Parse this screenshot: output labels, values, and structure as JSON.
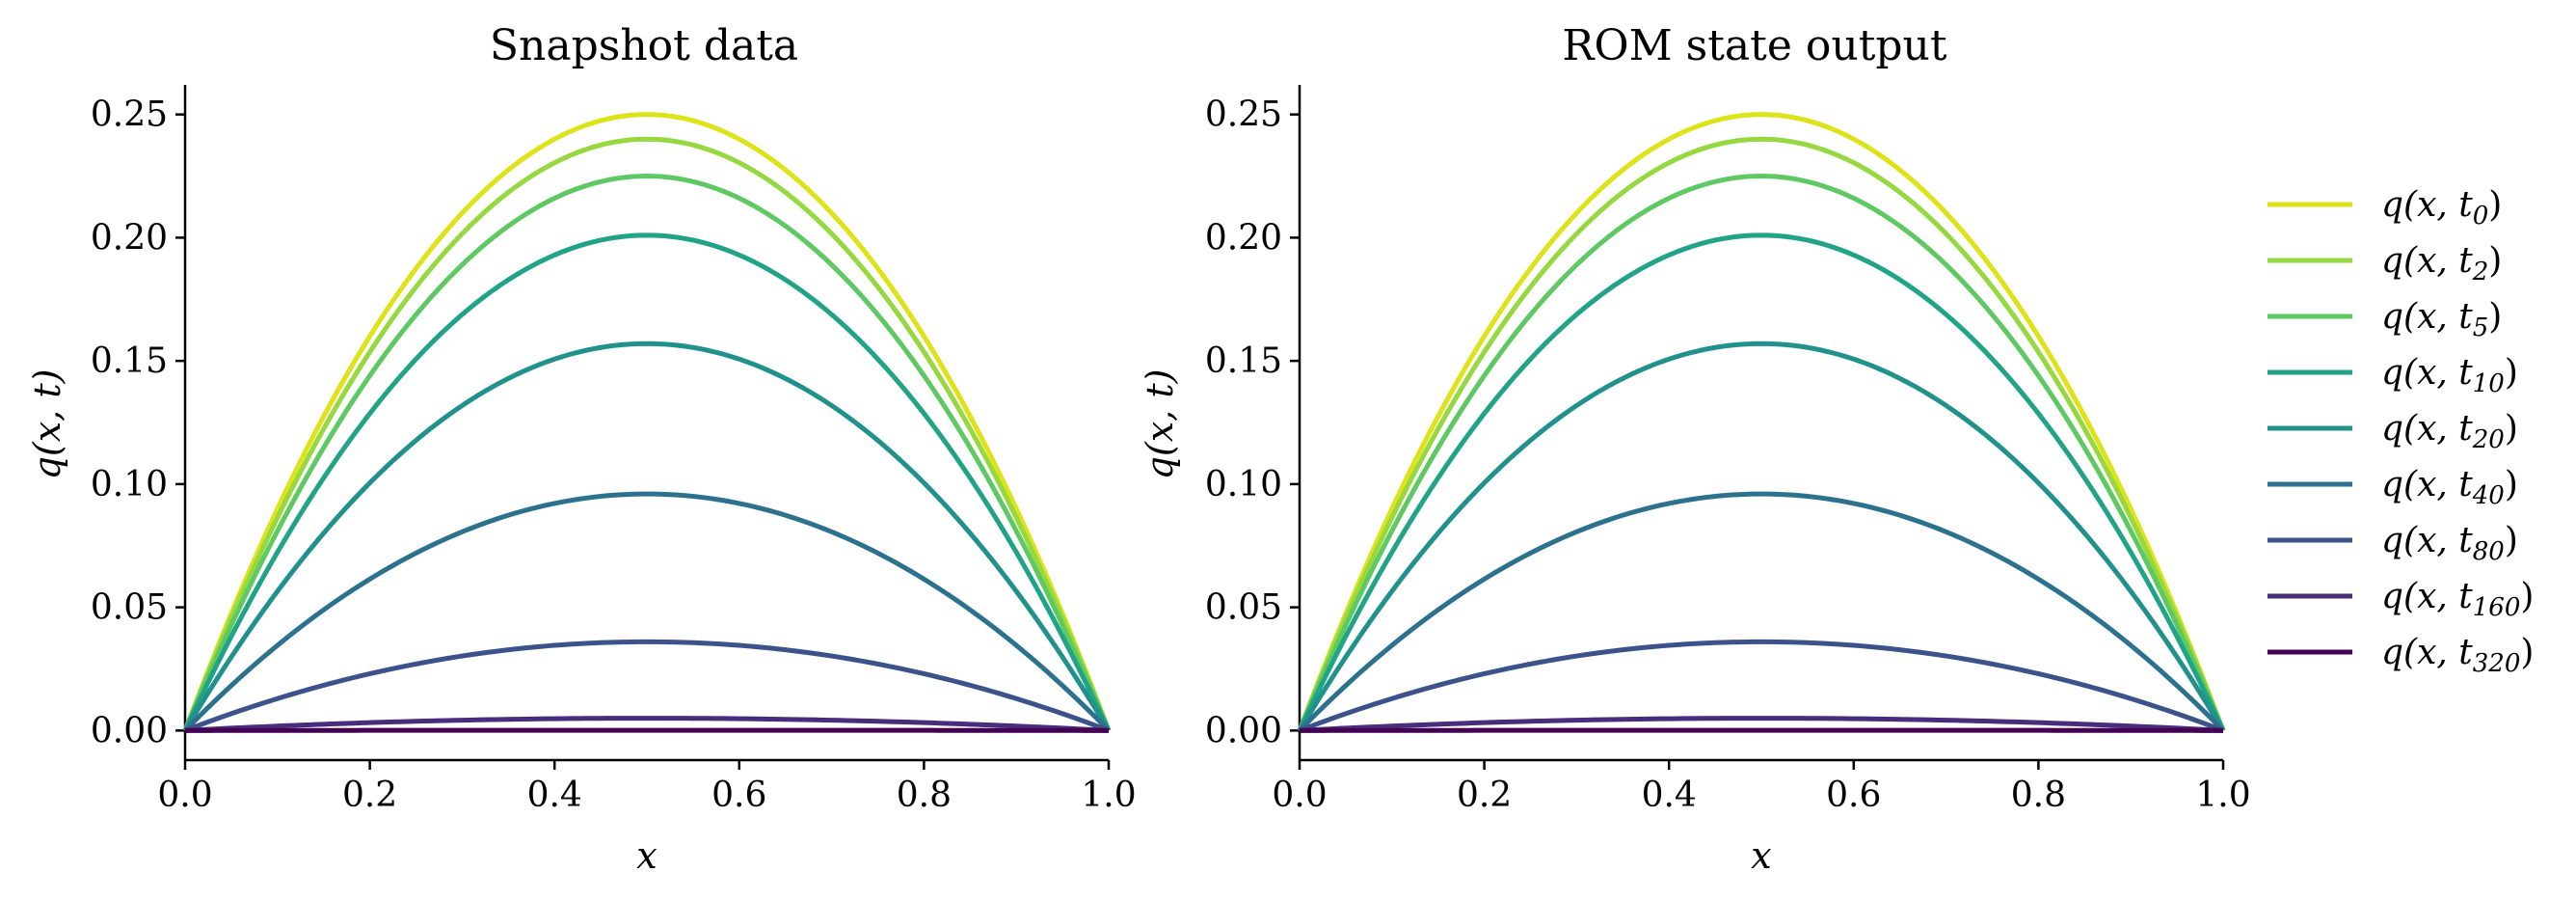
{
  "chart_data": [
    {
      "type": "line",
      "title": "Snapshot data",
      "xlabel": "x",
      "ylabel": "q(x, t)",
      "xlim": [
        0.0,
        1.0
      ],
      "ylim": [
        -0.012,
        0.262
      ],
      "xticks": [
        "0.0",
        "0.2",
        "0.4",
        "0.6",
        "0.8",
        "1.0"
      ],
      "yticks": [
        "0.00",
        "0.05",
        "0.10",
        "0.15",
        "0.20",
        "0.25"
      ],
      "curve_model": "amplitude * 4 * x * (1 - x)",
      "series": [
        {
          "name": "q(x, t0)",
          "base": "q(x, t",
          "sub": "0",
          "amplitude": 0.25,
          "color": "#dde318"
        },
        {
          "name": "q(x, t2)",
          "base": "q(x, t",
          "sub": "2",
          "amplitude": 0.24,
          "color": "#95d840"
        },
        {
          "name": "q(x, t5)",
          "base": "q(x, t",
          "sub": "5",
          "amplitude": 0.225,
          "color": "#5ec962"
        },
        {
          "name": "q(x, t10)",
          "base": "q(x, t",
          "sub": "10",
          "amplitude": 0.201,
          "color": "#20a386"
        },
        {
          "name": "q(x, t20)",
          "base": "q(x, t",
          "sub": "20",
          "amplitude": 0.157,
          "color": "#21918c"
        },
        {
          "name": "q(x, t40)",
          "base": "q(x, t",
          "sub": "40",
          "amplitude": 0.096,
          "color": "#2c728e"
        },
        {
          "name": "q(x, t80)",
          "base": "q(x, t",
          "sub": "80",
          "amplitude": 0.036,
          "color": "#3b528b"
        },
        {
          "name": "q(x, t160)",
          "base": "q(x, t",
          "sub": "160",
          "amplitude": 0.005,
          "color": "#472d7b"
        },
        {
          "name": "q(x, t320)",
          "base": "q(x, t",
          "sub": "320",
          "amplitude": 0.0001,
          "color": "#440154"
        }
      ]
    },
    {
      "type": "line",
      "title": "ROM state output",
      "xlabel": "x",
      "ylabel": "q(x, t)",
      "xlim": [
        0.0,
        1.0
      ],
      "ylim": [
        -0.012,
        0.262
      ],
      "xticks": [
        "0.0",
        "0.2",
        "0.4",
        "0.6",
        "0.8",
        "1.0"
      ],
      "yticks": [
        "0.00",
        "0.05",
        "0.10",
        "0.15",
        "0.20",
        "0.25"
      ],
      "curve_model": "amplitude * 4 * x * (1 - x)",
      "series": [
        {
          "name": "q(x, t0)",
          "base": "q(x, t",
          "sub": "0",
          "amplitude": 0.25,
          "color": "#dde318"
        },
        {
          "name": "q(x, t2)",
          "base": "q(x, t",
          "sub": "2",
          "amplitude": 0.24,
          "color": "#95d840"
        },
        {
          "name": "q(x, t5)",
          "base": "q(x, t",
          "sub": "5",
          "amplitude": 0.225,
          "color": "#5ec962"
        },
        {
          "name": "q(x, t10)",
          "base": "q(x, t",
          "sub": "10",
          "amplitude": 0.201,
          "color": "#20a386"
        },
        {
          "name": "q(x, t20)",
          "base": "q(x, t",
          "sub": "20",
          "amplitude": 0.157,
          "color": "#21918c"
        },
        {
          "name": "q(x, t40)",
          "base": "q(x, t",
          "sub": "40",
          "amplitude": 0.096,
          "color": "#2c728e"
        },
        {
          "name": "q(x, t80)",
          "base": "q(x, t",
          "sub": "80",
          "amplitude": 0.036,
          "color": "#3b528b"
        },
        {
          "name": "q(x, t160)",
          "base": "q(x, t",
          "sub": "160",
          "amplitude": 0.005,
          "color": "#472d7b"
        },
        {
          "name": "q(x, t320)",
          "base": "q(x, t",
          "sub": "320",
          "amplitude": 0.0001,
          "color": "#440154"
        }
      ]
    }
  ],
  "legend": {
    "placement": "right",
    "entries": [
      {
        "base": "q(x, t",
        "sub": "0",
        "color": "#dde318"
      },
      {
        "base": "q(x, t",
        "sub": "2",
        "color": "#95d840"
      },
      {
        "base": "q(x, t",
        "sub": "5",
        "color": "#5ec962"
      },
      {
        "base": "q(x, t",
        "sub": "10",
        "color": "#20a386"
      },
      {
        "base": "q(x, t",
        "sub": "20",
        "color": "#21918c"
      },
      {
        "base": "q(x, t",
        "sub": "40",
        "color": "#2c728e"
      },
      {
        "base": "q(x, t",
        "sub": "80",
        "color": "#3b528b"
      },
      {
        "base": "q(x, t",
        "sub": "160",
        "color": "#472d7b"
      },
      {
        "base": "q(x, t",
        "sub": "320",
        "color": "#440154"
      }
    ]
  }
}
